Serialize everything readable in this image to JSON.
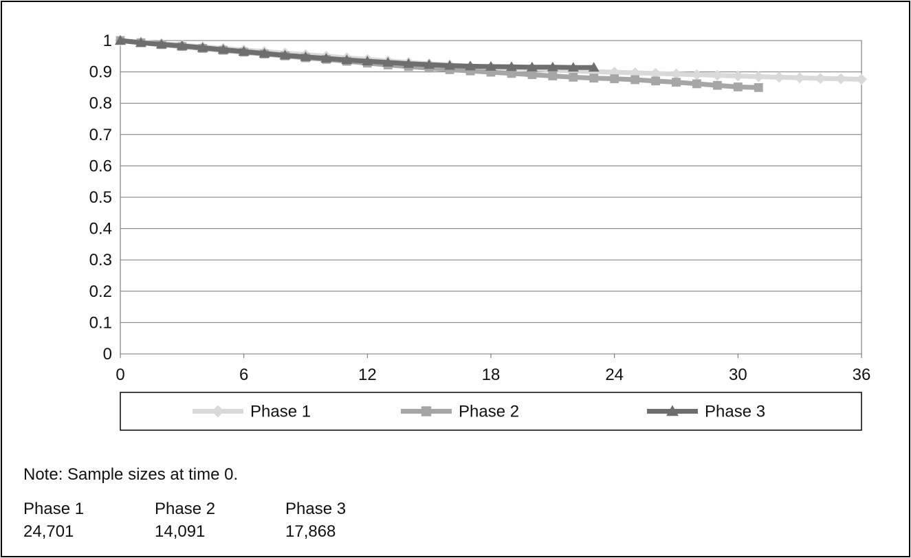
{
  "chart_data": {
    "type": "line",
    "title": "",
    "xlabel": "",
    "ylabel": "",
    "xlim": [
      0,
      36
    ],
    "ylim": [
      0,
      1
    ],
    "x_ticks": [
      0,
      6,
      12,
      18,
      24,
      30,
      36
    ],
    "y_ticks": [
      "0",
      "0.1",
      "0.2",
      "0.3",
      "0.4",
      "0.5",
      "0.6",
      "0.7",
      "0.8",
      "0.9",
      "1"
    ],
    "grid": "horizontal",
    "legend_position": "bottom",
    "series": [
      {
        "name": "Phase 1",
        "color": "#d9d9d9",
        "marker": "diamond",
        "x": [
          0,
          1,
          2,
          3,
          4,
          5,
          6,
          7,
          8,
          9,
          10,
          11,
          12,
          13,
          14,
          15,
          16,
          17,
          18,
          19,
          20,
          21,
          22,
          23,
          24,
          25,
          26,
          27,
          28,
          29,
          30,
          31,
          32,
          33,
          34,
          35,
          36
        ],
        "y": [
          1.0,
          0.995,
          0.99,
          0.985,
          0.98,
          0.975,
          0.97,
          0.965,
          0.96,
          0.955,
          0.95,
          0.945,
          0.94,
          0.935,
          0.93,
          0.926,
          0.922,
          0.918,
          0.915,
          0.912,
          0.909,
          0.906,
          0.903,
          0.901,
          0.899,
          0.897,
          0.895,
          0.893,
          0.891,
          0.889,
          0.887,
          0.885,
          0.883,
          0.881,
          0.879,
          0.878,
          0.876
        ]
      },
      {
        "name": "Phase 2",
        "color": "#a6a6a6",
        "marker": "square",
        "x": [
          0,
          1,
          2,
          3,
          4,
          5,
          6,
          7,
          8,
          9,
          10,
          11,
          12,
          13,
          14,
          15,
          16,
          17,
          18,
          19,
          20,
          21,
          22,
          23,
          24,
          25,
          26,
          27,
          28,
          29,
          30,
          31
        ],
        "y": [
          1.0,
          0.993,
          0.987,
          0.981,
          0.975,
          0.969,
          0.963,
          0.957,
          0.951,
          0.945,
          0.94,
          0.934,
          0.928,
          0.922,
          0.917,
          0.912,
          0.907,
          0.903,
          0.899,
          0.895,
          0.891,
          0.887,
          0.883,
          0.88,
          0.878,
          0.875,
          0.871,
          0.867,
          0.862,
          0.857,
          0.852,
          0.85
        ]
      },
      {
        "name": "Phase 3",
        "color": "#6e6e6e",
        "marker": "triangle",
        "x": [
          0,
          1,
          2,
          3,
          4,
          5,
          6,
          7,
          8,
          9,
          10,
          11,
          12,
          13,
          14,
          15,
          16,
          17,
          18,
          19,
          20,
          21,
          22,
          23
        ],
        "y": [
          1.0,
          0.993,
          0.988,
          0.983,
          0.977,
          0.971,
          0.965,
          0.959,
          0.953,
          0.948,
          0.943,
          0.938,
          0.934,
          0.93,
          0.926,
          0.923,
          0.92,
          0.918,
          0.917,
          0.916,
          0.915,
          0.915,
          0.914,
          0.914
        ]
      }
    ]
  },
  "note": {
    "text": "Note: Sample sizes at time 0.",
    "columns": [
      {
        "label": "Phase 1",
        "value": "24,701"
      },
      {
        "label": "Phase 2",
        "value": "14,091"
      },
      {
        "label": "Phase 3",
        "value": "17,868"
      }
    ]
  }
}
